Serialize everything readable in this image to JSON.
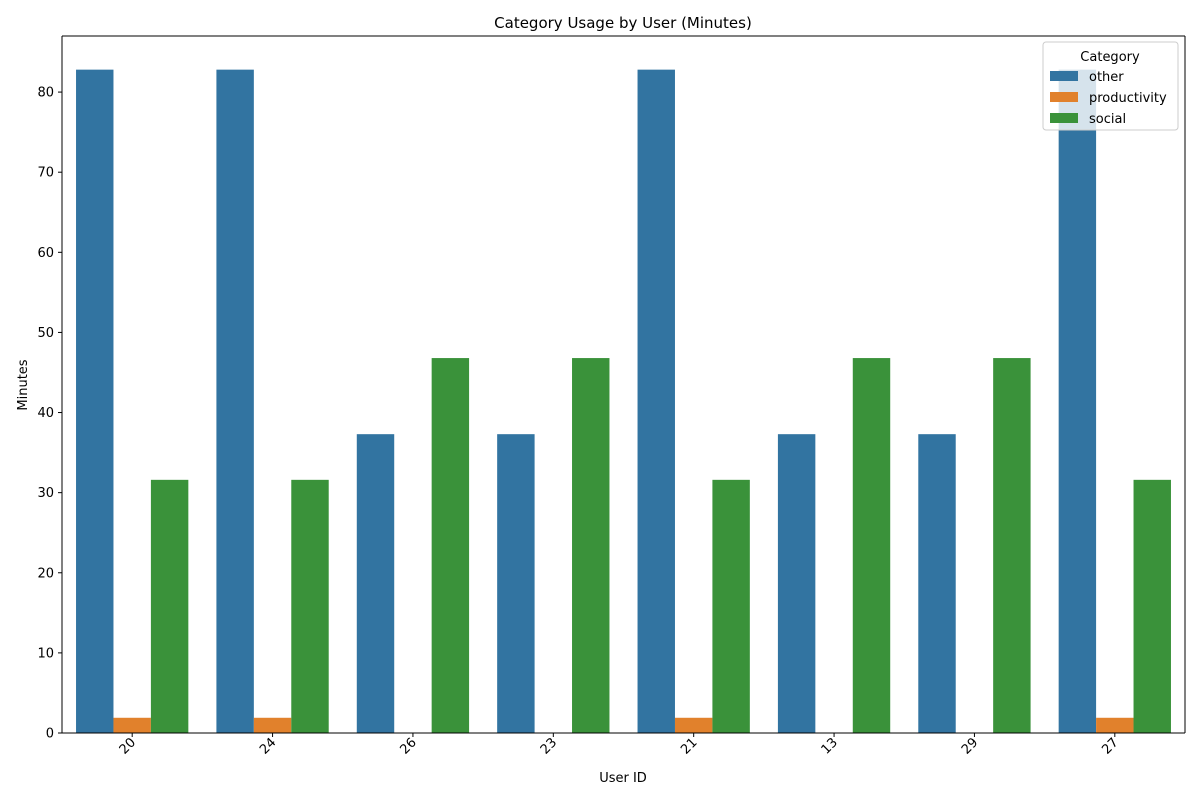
{
  "chart_data": {
    "type": "bar",
    "title": "Category Usage by User (Minutes)",
    "xlabel": "User ID",
    "ylabel": "Minutes",
    "categories": [
      "20",
      "24",
      "26",
      "23",
      "21",
      "13",
      "29",
      "27"
    ],
    "series": [
      {
        "name": "other",
        "color": "#3274a1",
        "values": [
          82.8,
          82.8,
          37.3,
          37.3,
          82.8,
          37.3,
          37.3,
          82.8
        ]
      },
      {
        "name": "productivity",
        "color": "#e1812c",
        "values": [
          1.9,
          1.9,
          0,
          0,
          1.9,
          0,
          0,
          1.9
        ]
      },
      {
        "name": "social",
        "color": "#3a923a",
        "values": [
          31.6,
          31.6,
          46.8,
          46.8,
          31.6,
          46.8,
          46.8,
          31.6
        ]
      }
    ],
    "ylim": [
      0,
      87
    ],
    "yticks": [
      0,
      10,
      20,
      30,
      40,
      50,
      60,
      70,
      80
    ],
    "grid": false,
    "legend": {
      "title": "Category",
      "placement": "top-right"
    }
  }
}
